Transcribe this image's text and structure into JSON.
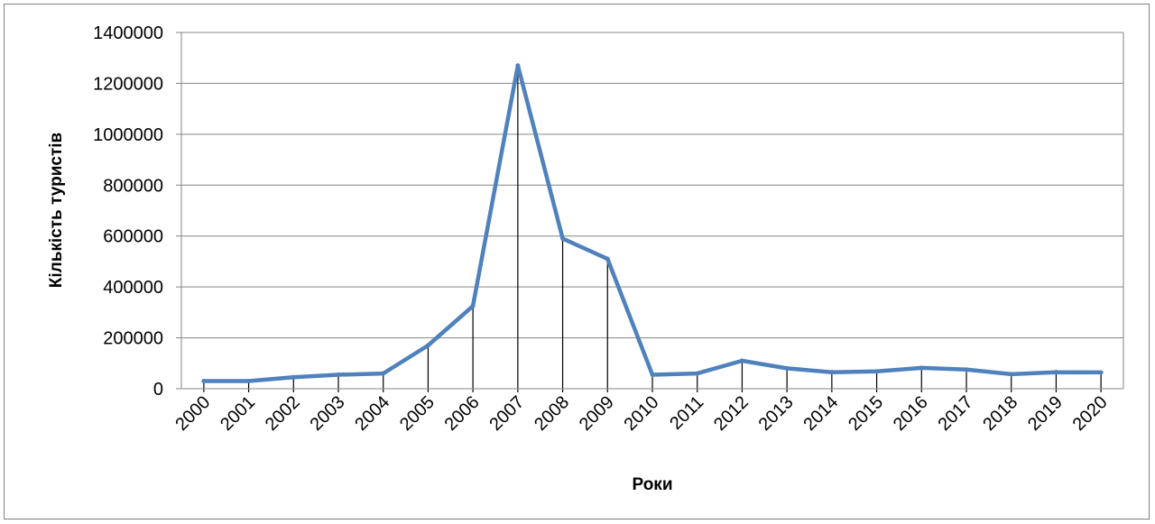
{
  "chart_data": {
    "type": "line",
    "title": "",
    "xlabel": "Роки",
    "ylabel": "Кількість туристів",
    "ylim": [
      0,
      1400000
    ],
    "y_ticks": [
      "0",
      "200000",
      "400000",
      "600000",
      "800000",
      "1000000",
      "1200000",
      "1400000"
    ],
    "grid": "horizontal",
    "legend": "none",
    "drop_lines": true,
    "categories": [
      "2000",
      "2001",
      "2002",
      "2003",
      "2004",
      "2005",
      "2006",
      "2007",
      "2008",
      "2009",
      "2010",
      "2011",
      "2012",
      "2013",
      "2014",
      "2015",
      "2016",
      "2017",
      "2018",
      "2019",
      "2020"
    ],
    "series": [
      {
        "values": [
          30000,
          30000,
          45000,
          55000,
          60000,
          170000,
          325000,
          1270000,
          590000,
          510000,
          55000,
          60000,
          110000,
          80000,
          65000,
          68000,
          82000,
          75000,
          57000,
          65000,
          64000
        ],
        "color": "#4f81bd"
      }
    ]
  }
}
